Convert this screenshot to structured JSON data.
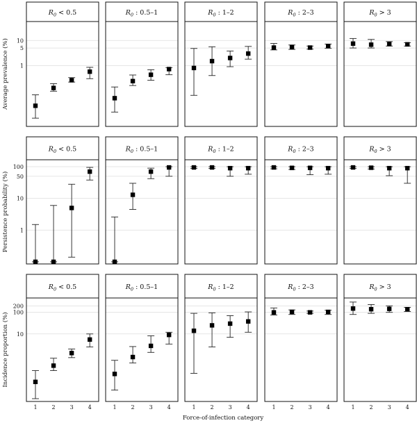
{
  "chart_data": {
    "type": "scatter",
    "subtype": "faceted point range with error bars",
    "xlabel": "Force-of-infection category",
    "x_categories": [
      "1",
      "2",
      "3",
      "4"
    ],
    "columns": [
      {
        "label_main": "R",
        "label_sub": "0",
        "label_suffix": " < 0.5"
      },
      {
        "label_main": "R",
        "label_sub": "0",
        "label_suffix": " : 0.5–1"
      },
      {
        "label_main": "R",
        "label_sub": "0",
        "label_suffix": " : 1–2"
      },
      {
        "label_main": "R",
        "label_sub": "0",
        "label_suffix": " : 2–3"
      },
      {
        "label_main": "R",
        "label_sub": "0",
        "label_suffix": " > 3"
      }
    ],
    "rows": [
      {
        "ylabel": "Average prevalence (%)",
        "yscale": "log",
        "ylim": [
          0.004,
          50
        ],
        "yticks": [
          1,
          5,
          10
        ],
        "yticklabels": [
          "1",
          "5",
          "10"
        ],
        "panels": [
          [
            {
              "x": 1,
              "y": 0.025,
              "lo": 0.008,
              "hi": 0.068
            },
            {
              "x": 2,
              "y": 0.128,
              "lo": 0.095,
              "hi": 0.19
            },
            {
              "x": 3,
              "y": 0.26,
              "lo": 0.22,
              "hi": 0.33
            },
            {
              "x": 4,
              "y": 0.57,
              "lo": 0.3,
              "hi": 0.85
            }
          ],
          [
            {
              "x": 1,
              "y": 0.05,
              "lo": 0.014,
              "hi": 0.14
            },
            {
              "x": 2,
              "y": 0.24,
              "lo": 0.16,
              "hi": 0.42
            },
            {
              "x": 3,
              "y": 0.43,
              "lo": 0.26,
              "hi": 0.68
            },
            {
              "x": 4,
              "y": 0.72,
              "lo": 0.43,
              "hi": 0.83
            }
          ],
          [
            {
              "x": 1,
              "y": 0.8,
              "lo": 0.065,
              "hi": 4.8
            },
            {
              "x": 2,
              "y": 1.5,
              "lo": 0.4,
              "hi": 5.6
            },
            {
              "x": 3,
              "y": 2.0,
              "lo": 0.9,
              "hi": 3.8
            },
            {
              "x": 4,
              "y": 3.0,
              "lo": 1.8,
              "hi": 5.8
            }
          ],
          [
            {
              "x": 1,
              "y": 5.2,
              "lo": 4.2,
              "hi": 7.6
            },
            {
              "x": 2,
              "y": 5.5,
              "lo": 4.4,
              "hi": 6.6
            },
            {
              "x": 3,
              "y": 5.2,
              "lo": 4.5,
              "hi": 6.0
            },
            {
              "x": 4,
              "y": 6.0,
              "lo": 4.9,
              "hi": 7.2
            }
          ],
          [
            {
              "x": 1,
              "y": 7.5,
              "lo": 5.0,
              "hi": 12
            },
            {
              "x": 2,
              "y": 6.8,
              "lo": 5.0,
              "hi": 11
            },
            {
              "x": 3,
              "y": 7.2,
              "lo": 6.0,
              "hi": 9.0
            },
            {
              "x": 4,
              "y": 7.0,
              "lo": 6.0,
              "hi": 8.2
            }
          ]
        ]
      },
      {
        "ylabel": "Persistence probability (%)",
        "yscale": "log",
        "ylim": [
          0.09,
          150
        ],
        "floor_value": 0.1,
        "yticks": [
          1,
          10,
          50,
          100
        ],
        "yticklabels": [
          "1",
          "10",
          "50",
          "100"
        ],
        "panels": [
          [
            {
              "x": 1,
              "y": 0,
              "lo": 0,
              "hi": 1.5
            },
            {
              "x": 2,
              "y": 0,
              "lo": 0,
              "hi": 6
            },
            {
              "x": 3,
              "y": 5,
              "lo": 0.14,
              "hi": 28
            },
            {
              "x": 4,
              "y": 70,
              "lo": 38,
              "hi": 95
            }
          ],
          [
            {
              "x": 1,
              "y": 0,
              "lo": 0,
              "hi": 2.6
            },
            {
              "x": 2,
              "y": 13,
              "lo": 4.5,
              "hi": 30
            },
            {
              "x": 3,
              "y": 70,
              "lo": 42,
              "hi": 90
            },
            {
              "x": 4,
              "y": 95,
              "lo": 50,
              "hi": 100
            }
          ],
          [
            {
              "x": 1,
              "y": 95,
              "lo": 88,
              "hi": 100
            },
            {
              "x": 2,
              "y": 95,
              "lo": 88,
              "hi": 100
            },
            {
              "x": 3,
              "y": 90,
              "lo": 50,
              "hi": 100
            },
            {
              "x": 4,
              "y": 90,
              "lo": 58,
              "hi": 100
            }
          ],
          [
            {
              "x": 1,
              "y": 95,
              "lo": 86,
              "hi": 100
            },
            {
              "x": 2,
              "y": 92,
              "lo": 82,
              "hi": 100
            },
            {
              "x": 3,
              "y": 92,
              "lo": 56,
              "hi": 100
            },
            {
              "x": 4,
              "y": 90,
              "lo": 58,
              "hi": 100
            }
          ],
          [
            {
              "x": 1,
              "y": 95,
              "lo": 88,
              "hi": 100
            },
            {
              "x": 2,
              "y": 93,
              "lo": 85,
              "hi": 100
            },
            {
              "x": 3,
              "y": 90,
              "lo": 52,
              "hi": 100
            },
            {
              "x": 4,
              "y": 90,
              "lo": 30,
              "hi": 100
            }
          ]
        ]
      },
      {
        "ylabel": "Incidence proportion (%)",
        "yscale": "log",
        "ylim": [
          0.008,
          400
        ],
        "yticks": [
          10,
          100,
          200
        ],
        "yticklabels": [
          "10",
          "100",
          "200"
        ],
        "panels": [
          [
            {
              "x": 1,
              "y": 0.06,
              "lo": 0.01,
              "hi": 0.2
            },
            {
              "x": 2,
              "y": 0.34,
              "lo": 0.2,
              "hi": 0.75
            },
            {
              "x": 3,
              "y": 1.3,
              "lo": 0.8,
              "hi": 2.0
            },
            {
              "x": 4,
              "y": 5.5,
              "lo": 2.5,
              "hi": 10
            }
          ],
          [
            {
              "x": 1,
              "y": 0.14,
              "lo": 0.025,
              "hi": 0.6
            },
            {
              "x": 2,
              "y": 0.85,
              "lo": 0.45,
              "hi": 2.6
            },
            {
              "x": 3,
              "y": 2.8,
              "lo": 1.4,
              "hi": 8.2
            },
            {
              "x": 4,
              "y": 9.0,
              "lo": 3.4,
              "hi": 12
            }
          ],
          [
            {
              "x": 1,
              "y": 14,
              "lo": 0.15,
              "hi": 90
            },
            {
              "x": 2,
              "y": 25,
              "lo": 2.5,
              "hi": 95
            },
            {
              "x": 3,
              "y": 30,
              "lo": 7,
              "hi": 70
            },
            {
              "x": 4,
              "y": 38,
              "lo": 12,
              "hi": 105
            }
          ],
          [
            {
              "x": 1,
              "y": 100,
              "lo": 75,
              "hi": 160
            },
            {
              "x": 2,
              "y": 105,
              "lo": 80,
              "hi": 130
            },
            {
              "x": 3,
              "y": 100,
              "lo": 90,
              "hi": 115
            },
            {
              "x": 4,
              "y": 105,
              "lo": 80,
              "hi": 125
            }
          ],
          [
            {
              "x": 1,
              "y": 150,
              "lo": 80,
              "hi": 300
            },
            {
              "x": 2,
              "y": 140,
              "lo": 90,
              "hi": 230
            },
            {
              "x": 3,
              "y": 145,
              "lo": 100,
              "hi": 200
            },
            {
              "x": 4,
              "y": 140,
              "lo": 110,
              "hi": 170
            }
          ]
        ]
      }
    ],
    "grid": "horizontal",
    "legend": "none",
    "colors": {
      "marker": "#000000",
      "errorbar": "#222222",
      "grid": "#dddddd",
      "frame": "#111111",
      "background": "#ffffff"
    }
  }
}
